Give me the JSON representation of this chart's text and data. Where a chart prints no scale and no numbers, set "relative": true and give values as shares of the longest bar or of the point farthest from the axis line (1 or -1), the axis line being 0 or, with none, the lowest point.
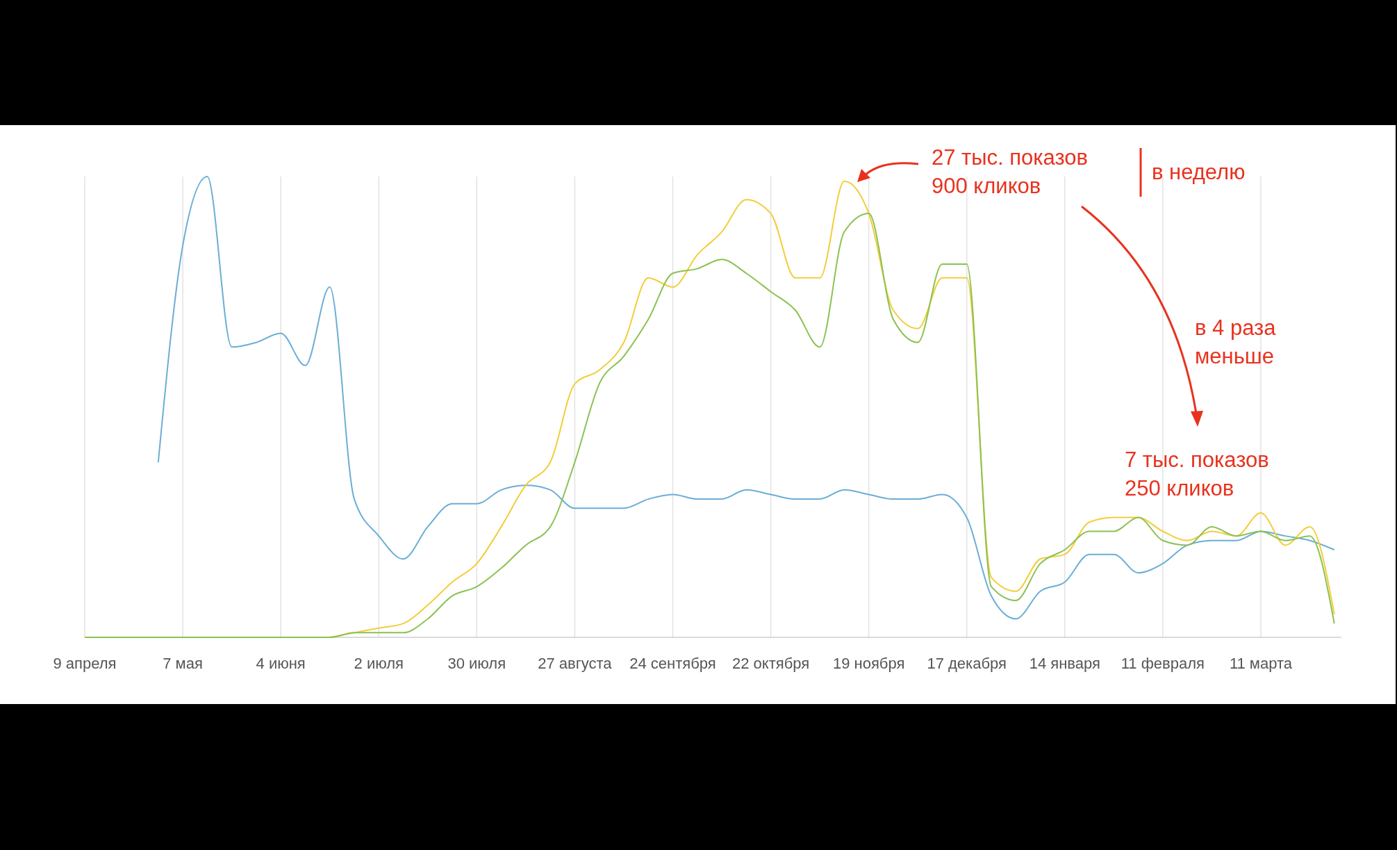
{
  "chart_data": {
    "type": "line",
    "relative": true,
    "grid": "x",
    "marker": "none",
    "line_style": "solid",
    "categories": [
      "9 апреля",
      null,
      null,
      null,
      "7 мая",
      null,
      null,
      null,
      "4 июня",
      null,
      null,
      null,
      "2 июля",
      null,
      null,
      null,
      "30 июля",
      null,
      null,
      null,
      "27 августа",
      null,
      null,
      null,
      "24 сентября",
      null,
      null,
      null,
      "22 октября",
      null,
      null,
      null,
      "19 ноября",
      null,
      null,
      null,
      "17 декабря",
      null,
      null,
      null,
      "14 января",
      null,
      null,
      null,
      "11 февраля",
      null,
      null,
      null,
      "11 марта",
      null,
      null,
      null
    ],
    "series": [
      {
        "color": "#6aaed6",
        "values": [
          null,
          null,
          null,
          0.38,
          0.85,
          1.0,
          0.63,
          0.64,
          0.66,
          0.59,
          0.76,
          0.3,
          0.22,
          0.17,
          0.24,
          0.29,
          0.29,
          0.32,
          0.33,
          0.32,
          0.28,
          0.28,
          0.28,
          0.3,
          0.31,
          0.3,
          0.3,
          0.32,
          0.31,
          0.3,
          0.3,
          0.32,
          0.31,
          0.3,
          0.3,
          0.31,
          0.26,
          0.09,
          0.04,
          0.1,
          0.12,
          0.18,
          0.18,
          0.14,
          0.16,
          0.2,
          0.21,
          0.21,
          0.23,
          0.22,
          0.21,
          0.19
        ]
      },
      {
        "color": "#f2cd3a",
        "values": [
          null,
          null,
          null,
          null,
          null,
          null,
          null,
          null,
          null,
          null,
          0,
          0.01,
          0.02,
          0.03,
          0.07,
          0.12,
          0.16,
          0.24,
          0.33,
          0.38,
          0.55,
          0.58,
          0.64,
          0.78,
          0.76,
          0.83,
          0.88,
          0.95,
          0.92,
          0.78,
          0.78,
          0.99,
          0.92,
          0.71,
          0.67,
          0.78,
          0.78,
          0.13,
          0.1,
          0.17,
          0.18,
          0.25,
          0.26,
          0.26,
          0.23,
          0.21,
          0.23,
          0.22,
          0.27,
          0.2,
          0.24,
          0.05
        ]
      },
      {
        "color": "#8cc152",
        "values": [
          0,
          0,
          0,
          0,
          0,
          0,
          0,
          0,
          0,
          0,
          0,
          0.01,
          0.01,
          0.01,
          0.04,
          0.09,
          0.11,
          0.15,
          0.2,
          0.24,
          0.38,
          0.55,
          0.61,
          0.69,
          0.79,
          0.8,
          0.82,
          0.79,
          0.75,
          0.71,
          0.63,
          0.88,
          0.92,
          0.69,
          0.64,
          0.81,
          0.81,
          0.11,
          0.08,
          0.16,
          0.19,
          0.23,
          0.23,
          0.26,
          0.21,
          0.2,
          0.24,
          0.22,
          0.23,
          0.21,
          0.22,
          0.03
        ]
      }
    ],
    "annotations": [
      "27 тыс. показов\n900 кликов",
      "в неделю",
      "в 4 раза\nменьше",
      "7 тыс. показов\n250 кликов"
    ]
  }
}
